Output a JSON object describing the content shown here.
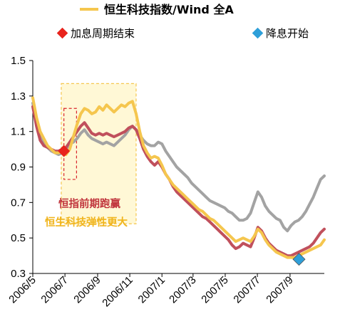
{
  "chart_data": {
    "type": "line",
    "legend": [
      {
        "label": "恒生科技指数/Wind 全A",
        "color": "#F5C64E",
        "icon": "line"
      },
      {
        "label": "加息周期结束",
        "color": "#E8231C",
        "icon": "red-diamond-icon"
      },
      {
        "label": "降息开始",
        "color": "#2E9FD9",
        "icon": "blue-diamond-icon"
      }
    ],
    "ylim": [
      0.3,
      1.5
    ],
    "yticks": [
      0.3,
      0.5,
      0.7,
      0.9,
      1.1,
      1.3,
      1.5
    ],
    "ytick_labels": [
      "0.3",
      "0.5",
      "0.7",
      "0.9",
      "1.1",
      "1.3",
      "1.5"
    ],
    "xlim": [
      "2006-05-01",
      "2007-11-05"
    ],
    "xticks": [
      "2006-05-01",
      "2006-07-01",
      "2006-09-01",
      "2006-11-01",
      "2007-01-01",
      "2007-03-01",
      "2007-05-01",
      "2007-07-01",
      "2007-09-01"
    ],
    "xtick_labels": [
      "2006/5",
      "2006/7",
      "2006/9",
      "2006/11",
      "2007/1",
      "2007/3",
      "2007/5",
      "2007/7",
      "2007/9"
    ],
    "series": [
      {
        "name": "",
        "color": "#A3A3A3",
        "points": [
          [
            "2006-05-01",
            1.26
          ],
          [
            "2006-05-08",
            1.15
          ],
          [
            "2006-05-15",
            1.07
          ],
          [
            "2006-05-22",
            1.03
          ],
          [
            "2006-05-29",
            1.01
          ],
          [
            "2006-06-05",
            0.99
          ],
          [
            "2006-06-12",
            0.98
          ],
          [
            "2006-06-19",
            0.97
          ],
          [
            "2006-06-26",
            0.98
          ],
          [
            "2006-07-03",
            1.0
          ],
          [
            "2006-07-10",
            1.03
          ],
          [
            "2006-07-17",
            1.04
          ],
          [
            "2006-07-24",
            1.06
          ],
          [
            "2006-07-31",
            1.09
          ],
          [
            "2006-08-07",
            1.11
          ],
          [
            "2006-08-14",
            1.08
          ],
          [
            "2006-08-21",
            1.06
          ],
          [
            "2006-08-28",
            1.05
          ],
          [
            "2006-09-04",
            1.04
          ],
          [
            "2006-09-11",
            1.03
          ],
          [
            "2006-09-18",
            1.04
          ],
          [
            "2006-09-25",
            1.03
          ],
          [
            "2006-10-02",
            1.02
          ],
          [
            "2006-10-09",
            1.04
          ],
          [
            "2006-10-16",
            1.06
          ],
          [
            "2006-10-23",
            1.08
          ],
          [
            "2006-10-30",
            1.11
          ],
          [
            "2006-11-06",
            1.13
          ],
          [
            "2006-11-13",
            1.11
          ],
          [
            "2006-11-20",
            1.08
          ],
          [
            "2006-11-27",
            1.05
          ],
          [
            "2006-12-04",
            1.03
          ],
          [
            "2006-12-11",
            1.02
          ],
          [
            "2006-12-18",
            1.02
          ],
          [
            "2006-12-25",
            1.04
          ],
          [
            "2007-01-01",
            1.03
          ],
          [
            "2007-01-08",
            0.99
          ],
          [
            "2007-01-15",
            0.96
          ],
          [
            "2007-01-22",
            0.93
          ],
          [
            "2007-01-29",
            0.9
          ],
          [
            "2007-02-05",
            0.88
          ],
          [
            "2007-02-12",
            0.86
          ],
          [
            "2007-02-19",
            0.84
          ],
          [
            "2007-02-26",
            0.81
          ],
          [
            "2007-03-05",
            0.79
          ],
          [
            "2007-03-12",
            0.77
          ],
          [
            "2007-03-19",
            0.75
          ],
          [
            "2007-03-26",
            0.73
          ],
          [
            "2007-04-02",
            0.71
          ],
          [
            "2007-04-09",
            0.7
          ],
          [
            "2007-04-16",
            0.69
          ],
          [
            "2007-04-23",
            0.68
          ],
          [
            "2007-04-30",
            0.67
          ],
          [
            "2007-05-07",
            0.65
          ],
          [
            "2007-05-14",
            0.64
          ],
          [
            "2007-05-21",
            0.62
          ],
          [
            "2007-05-28",
            0.6
          ],
          [
            "2007-06-04",
            0.6
          ],
          [
            "2007-06-11",
            0.61
          ],
          [
            "2007-06-18",
            0.64
          ],
          [
            "2007-06-25",
            0.7
          ],
          [
            "2007-07-02",
            0.76
          ],
          [
            "2007-07-09",
            0.73
          ],
          [
            "2007-07-16",
            0.68
          ],
          [
            "2007-07-23",
            0.65
          ],
          [
            "2007-07-30",
            0.63
          ],
          [
            "2007-08-06",
            0.61
          ],
          [
            "2007-08-13",
            0.6
          ],
          [
            "2007-08-20",
            0.56
          ],
          [
            "2007-08-27",
            0.54
          ],
          [
            "2007-09-03",
            0.57
          ],
          [
            "2007-09-10",
            0.59
          ],
          [
            "2007-09-17",
            0.6
          ],
          [
            "2007-09-24",
            0.62
          ],
          [
            "2007-10-01",
            0.65
          ],
          [
            "2007-10-08",
            0.69
          ],
          [
            "2007-10-15",
            0.73
          ],
          [
            "2007-10-22",
            0.78
          ],
          [
            "2007-10-29",
            0.83
          ],
          [
            "2007-11-05",
            0.85
          ]
        ]
      },
      {
        "name": "",
        "color": "#C0505C",
        "points": [
          [
            "2006-05-01",
            1.24
          ],
          [
            "2006-05-08",
            1.13
          ],
          [
            "2006-05-15",
            1.05
          ],
          [
            "2006-05-22",
            1.02
          ],
          [
            "2006-05-29",
            1.01
          ],
          [
            "2006-06-05",
            1.0
          ],
          [
            "2006-06-12",
            0.99
          ],
          [
            "2006-06-19",
            0.99
          ],
          [
            "2006-06-26",
            1.0
          ],
          [
            "2006-07-03",
            1.01
          ],
          [
            "2006-07-10",
            1.04
          ],
          [
            "2006-07-17",
            1.07
          ],
          [
            "2006-07-24",
            1.1
          ],
          [
            "2006-07-31",
            1.13
          ],
          [
            "2006-08-07",
            1.15
          ],
          [
            "2006-08-14",
            1.12
          ],
          [
            "2006-08-21",
            1.09
          ],
          [
            "2006-08-28",
            1.08
          ],
          [
            "2006-09-04",
            1.09
          ],
          [
            "2006-09-11",
            1.08
          ],
          [
            "2006-09-18",
            1.09
          ],
          [
            "2006-09-25",
            1.08
          ],
          [
            "2006-10-02",
            1.07
          ],
          [
            "2006-10-09",
            1.08
          ],
          [
            "2006-10-16",
            1.09
          ],
          [
            "2006-10-23",
            1.1
          ],
          [
            "2006-10-30",
            1.12
          ],
          [
            "2006-11-06",
            1.13
          ],
          [
            "2006-11-13",
            1.11
          ],
          [
            "2006-11-20",
            1.06
          ],
          [
            "2006-11-27",
            1.0
          ],
          [
            "2006-12-04",
            0.96
          ],
          [
            "2006-12-11",
            0.93
          ],
          [
            "2006-12-18",
            0.91
          ],
          [
            "2006-12-25",
            0.93
          ],
          [
            "2007-01-01",
            0.9
          ],
          [
            "2007-01-08",
            0.86
          ],
          [
            "2007-01-15",
            0.83
          ],
          [
            "2007-01-22",
            0.79
          ],
          [
            "2007-01-29",
            0.76
          ],
          [
            "2007-02-05",
            0.74
          ],
          [
            "2007-02-12",
            0.72
          ],
          [
            "2007-02-19",
            0.7
          ],
          [
            "2007-02-26",
            0.68
          ],
          [
            "2007-03-05",
            0.66
          ],
          [
            "2007-03-12",
            0.64
          ],
          [
            "2007-03-19",
            0.62
          ],
          [
            "2007-03-26",
            0.61
          ],
          [
            "2007-04-02",
            0.59
          ],
          [
            "2007-04-09",
            0.57
          ],
          [
            "2007-04-16",
            0.55
          ],
          [
            "2007-04-23",
            0.53
          ],
          [
            "2007-04-30",
            0.51
          ],
          [
            "2007-05-07",
            0.49
          ],
          [
            "2007-05-14",
            0.46
          ],
          [
            "2007-05-21",
            0.44
          ],
          [
            "2007-05-28",
            0.45
          ],
          [
            "2007-06-04",
            0.47
          ],
          [
            "2007-06-11",
            0.46
          ],
          [
            "2007-06-18",
            0.45
          ],
          [
            "2007-06-25",
            0.5
          ],
          [
            "2007-07-02",
            0.56
          ],
          [
            "2007-07-09",
            0.54
          ],
          [
            "2007-07-16",
            0.5
          ],
          [
            "2007-07-23",
            0.47
          ],
          [
            "2007-07-30",
            0.45
          ],
          [
            "2007-08-06",
            0.43
          ],
          [
            "2007-08-13",
            0.42
          ],
          [
            "2007-08-20",
            0.41
          ],
          [
            "2007-08-27",
            0.4
          ],
          [
            "2007-09-03",
            0.4
          ],
          [
            "2007-09-10",
            0.41
          ],
          [
            "2007-09-17",
            0.42
          ],
          [
            "2007-09-24",
            0.43
          ],
          [
            "2007-10-01",
            0.44
          ],
          [
            "2007-10-08",
            0.45
          ],
          [
            "2007-10-15",
            0.47
          ],
          [
            "2007-10-22",
            0.5
          ],
          [
            "2007-10-29",
            0.53
          ],
          [
            "2007-11-05",
            0.55
          ]
        ]
      },
      {
        "name": "恒生科技指数/Wind 全A",
        "color": "#F5C64E",
        "points": [
          [
            "2006-05-01",
            1.29
          ],
          [
            "2006-05-08",
            1.18
          ],
          [
            "2006-05-15",
            1.1
          ],
          [
            "2006-05-22",
            1.06
          ],
          [
            "2006-05-29",
            1.02
          ],
          [
            "2006-06-05",
            1.0
          ],
          [
            "2006-06-12",
            0.98
          ],
          [
            "2006-06-19",
            0.98
          ],
          [
            "2006-06-26",
            0.99
          ],
          [
            "2006-07-03",
            0.97
          ],
          [
            "2006-07-10",
            1.0
          ],
          [
            "2006-07-17",
            1.07
          ],
          [
            "2006-07-24",
            1.14
          ],
          [
            "2006-07-31",
            1.2
          ],
          [
            "2006-08-07",
            1.23
          ],
          [
            "2006-08-14",
            1.22
          ],
          [
            "2006-08-21",
            1.2
          ],
          [
            "2006-08-28",
            1.21
          ],
          [
            "2006-09-04",
            1.24
          ],
          [
            "2006-09-11",
            1.22
          ],
          [
            "2006-09-18",
            1.25
          ],
          [
            "2006-09-25",
            1.23
          ],
          [
            "2006-10-02",
            1.21
          ],
          [
            "2006-10-09",
            1.23
          ],
          [
            "2006-10-16",
            1.25
          ],
          [
            "2006-10-23",
            1.24
          ],
          [
            "2006-10-30",
            1.26
          ],
          [
            "2006-11-06",
            1.27
          ],
          [
            "2006-11-13",
            1.2
          ],
          [
            "2006-11-20",
            1.1
          ],
          [
            "2006-11-27",
            1.02
          ],
          [
            "2006-12-04",
            0.98
          ],
          [
            "2006-12-11",
            0.95
          ],
          [
            "2006-12-18",
            0.96
          ],
          [
            "2006-12-25",
            0.95
          ],
          [
            "2007-01-01",
            0.91
          ],
          [
            "2007-01-08",
            0.86
          ],
          [
            "2007-01-15",
            0.83
          ],
          [
            "2007-01-22",
            0.8
          ],
          [
            "2007-01-29",
            0.78
          ],
          [
            "2007-02-05",
            0.76
          ],
          [
            "2007-02-12",
            0.74
          ],
          [
            "2007-02-19",
            0.72
          ],
          [
            "2007-02-26",
            0.7
          ],
          [
            "2007-03-05",
            0.68
          ],
          [
            "2007-03-12",
            0.66
          ],
          [
            "2007-03-19",
            0.65
          ],
          [
            "2007-03-26",
            0.63
          ],
          [
            "2007-04-02",
            0.61
          ],
          [
            "2007-04-09",
            0.6
          ],
          [
            "2007-04-16",
            0.58
          ],
          [
            "2007-04-23",
            0.56
          ],
          [
            "2007-04-30",
            0.54
          ],
          [
            "2007-05-07",
            0.52
          ],
          [
            "2007-05-14",
            0.5
          ],
          [
            "2007-05-21",
            0.48
          ],
          [
            "2007-05-28",
            0.49
          ],
          [
            "2007-06-04",
            0.5
          ],
          [
            "2007-06-11",
            0.49
          ],
          [
            "2007-06-18",
            0.48
          ],
          [
            "2007-06-25",
            0.51
          ],
          [
            "2007-07-02",
            0.55
          ],
          [
            "2007-07-09",
            0.53
          ],
          [
            "2007-07-16",
            0.49
          ],
          [
            "2007-07-23",
            0.46
          ],
          [
            "2007-07-30",
            0.44
          ],
          [
            "2007-08-06",
            0.42
          ],
          [
            "2007-08-13",
            0.41
          ],
          [
            "2007-08-20",
            0.4
          ],
          [
            "2007-08-27",
            0.39
          ],
          [
            "2007-09-03",
            0.39
          ],
          [
            "2007-09-10",
            0.39
          ],
          [
            "2007-09-17",
            0.4
          ],
          [
            "2007-09-24",
            0.41
          ],
          [
            "2007-10-01",
            0.42
          ],
          [
            "2007-10-08",
            0.43
          ],
          [
            "2007-10-15",
            0.44
          ],
          [
            "2007-10-22",
            0.45
          ],
          [
            "2007-10-29",
            0.46
          ],
          [
            "2007-11-05",
            0.49
          ]
        ]
      }
    ],
    "events": [
      {
        "label": "加息周期结束",
        "date": "2006-06-29",
        "value": 0.99,
        "color": "#E8231C",
        "icon": "red-diamond-icon"
      },
      {
        "label": "降息开始",
        "date": "2007-09-18",
        "value": 0.38,
        "color": "#2E9FD9",
        "icon": "blue-diamond-icon"
      }
    ],
    "highlight_regions": [
      {
        "x": [
          "2006-06-24",
          "2006-11-13"
        ],
        "y": [
          0.58,
          1.37
        ],
        "fill": "#FFF8D6",
        "stroke": "#F5C64E",
        "dash": true
      },
      {
        "x": [
          "2006-06-29",
          "2006-07-23"
        ],
        "y": [
          0.83,
          1.23
        ],
        "fill": "none",
        "stroke": "#D9262C",
        "dash": true
      }
    ],
    "annotations": [
      {
        "text": "恒指前期跑赢",
        "color": "#C0343C"
      },
      {
        "text": "恒生科技弹性更大",
        "color": "#F0B41C"
      }
    ],
    "grid": false
  }
}
